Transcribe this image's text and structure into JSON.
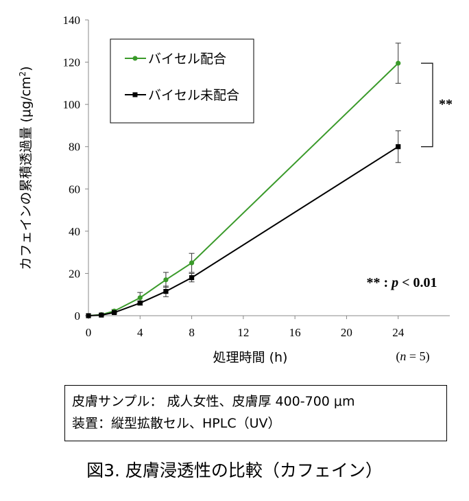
{
  "chart_data": {
    "type": "line",
    "x_unit": "h",
    "xlabel": "処理時間 (h)",
    "ylabel": "カフェインの累積透過量 (μg/cm2)",
    "ylabel_main": "カフェインの累積透過量 (μg/cm",
    "ylabel_sup": "2",
    "ylabel_close": ")",
    "xlim": [
      0,
      28
    ],
    "ylim": [
      0,
      140
    ],
    "xticks": [
      "0",
      "4",
      "8",
      "12",
      "16",
      "20",
      "24"
    ],
    "yticks": [
      "0",
      "20",
      "40",
      "60",
      "80",
      "100",
      "120",
      "140"
    ],
    "series": [
      {
        "name": "バイセル配合",
        "color": "#3a9a2a",
        "marker": "circle",
        "x": [
          0,
          1,
          2,
          4,
          6,
          8,
          24
        ],
        "values": [
          0,
          0.5,
          2.2,
          8.5,
          17,
          25,
          119.5
        ],
        "error": [
          0,
          0.3,
          0.7,
          2.5,
          3.5,
          4.5,
          9.5
        ]
      },
      {
        "name": "バイセル未配合",
        "color": "#000000",
        "marker": "square",
        "x": [
          0,
          1,
          2,
          4,
          6,
          8,
          24
        ],
        "values": [
          0,
          0.3,
          1.5,
          6,
          11.5,
          18,
          80
        ],
        "error": [
          0,
          0.2,
          0.5,
          1,
          2.5,
          2,
          7.5
        ]
      }
    ],
    "significance_label": "**",
    "significance_note": "** : p < 0.01",
    "significance_stars": "**",
    "significance_colon": " : ",
    "significance_p": "p",
    "significance_rest": " < 0.01",
    "n_note": "(n = 5)",
    "n_open": "(",
    "n_var": "n",
    "n_rest": " = 5)"
  },
  "info": {
    "line1": "皮膚サンプル： 成人女性、皮膚厚 400-700 μm",
    "line2": "装置：縦型拡散セル、HPLC（UV）"
  },
  "caption": "図3. 皮膚浸透性の比較（カフェイン）"
}
